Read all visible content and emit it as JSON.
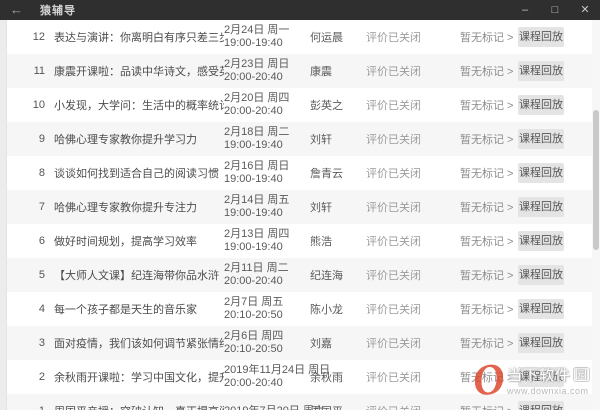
{
  "titlebar": {
    "back_icon": "←",
    "title": "猿辅导",
    "minimize": "–",
    "maximize": "□",
    "close": "✕"
  },
  "rows": [
    {
      "num": "12",
      "title": "表达与演讲：你离明白有序只差三步",
      "date": "2月24日 周一",
      "time": "19:00-19:40",
      "teacher": "何运晨",
      "eval": "评价已关闭",
      "mark": "暂无标记 >",
      "action": "课程回放"
    },
    {
      "num": "11",
      "title": "康震开课啦：品读中华诗文，感受英雄力量",
      "date": "2月23日 周日",
      "time": "20:00-20:40",
      "teacher": "康震",
      "eval": "评价已关闭",
      "mark": "暂无标记 >",
      "action": "课程回放"
    },
    {
      "num": "10",
      "title": "小发现，大学问：生活中的概率统计思维",
      "date": "2月20日 周四",
      "time": "20:00-20:40",
      "teacher": "彭英之",
      "eval": "评价已关闭",
      "mark": "暂无标记 >",
      "action": "课程回放"
    },
    {
      "num": "9",
      "title": "哈佛心理专家教你提升学习力",
      "date": "2月18日 周二",
      "time": "19:00-19:40",
      "teacher": "刘轩",
      "eval": "评价已关闭",
      "mark": "暂无标记 >",
      "action": "课程回放"
    },
    {
      "num": "8",
      "title": "谈谈如何找到适合自己的阅读习惯",
      "date": "2月16日 周日",
      "time": "19:00-19:40",
      "teacher": "詹青云",
      "eval": "评价已关闭",
      "mark": "暂无标记 >",
      "action": "课程回放"
    },
    {
      "num": "7",
      "title": "哈佛心理专家教你提升专注力",
      "date": "2月14日 周五",
      "time": "19:00-19:40",
      "teacher": "刘轩",
      "eval": "评价已关闭",
      "mark": "暂无标记 >",
      "action": "课程回放"
    },
    {
      "num": "6",
      "title": "做好时间规划，提高学习效率",
      "date": "2月13日 周四",
      "time": "19:00-19:40",
      "teacher": "熊浩",
      "eval": "评价已关闭",
      "mark": "暂无标记 >",
      "action": "课程回放"
    },
    {
      "num": "5",
      "title": "【大师人文课】纪连海带你品水浒",
      "date": "2月11日 周二",
      "time": "20:00-20:40",
      "teacher": "纪连海",
      "eval": "评价已关闭",
      "mark": "暂无标记 >",
      "action": "课程回放"
    },
    {
      "num": "4",
      "title": "每一个孩子都是天生的音乐家",
      "date": "2月7日 周五",
      "time": "20:10-20:50",
      "teacher": "陈小龙",
      "eval": "评价已关闭",
      "mark": "暂无标记 >",
      "action": "课程回放"
    },
    {
      "num": "3",
      "title": "面对疫情，我们该如何调节紧张情绪",
      "date": "2月6日 周四",
      "time": "20:10-20:50",
      "teacher": "刘嘉",
      "eval": "评价已关闭",
      "mark": "暂无标记 >",
      "action": "课程回放"
    },
    {
      "num": "2",
      "title": "余秋雨开课啦：学习中国文化，提升文学素养",
      "date": "2019年11月24日 周日",
      "time": "20:00-20:40",
      "teacher": "余秋雨",
      "eval": "评价已关闭",
      "mark": "暂无标记 >",
      "action": "课程回放"
    },
    {
      "num": "1",
      "title": "周国平亲授：突破认知，真正提高阅读与写作能力",
      "date": "2019年7月20日 周六",
      "time": "",
      "teacher": "周国平",
      "eval": "评价已关闭",
      "mark": "暂无标记 >",
      "action": "课程回放"
    }
  ],
  "watermark": {
    "logo": "O",
    "site_main": "当下软件",
    "site_boxed": "园",
    "url": "www.downxia.com"
  },
  "colors": {
    "titlebar_bg": "#2f2f2f",
    "row_alt_bg": "#f6f6f6",
    "button_bg": "#e4e4e4",
    "logo_accent": "#dd4a2d"
  }
}
